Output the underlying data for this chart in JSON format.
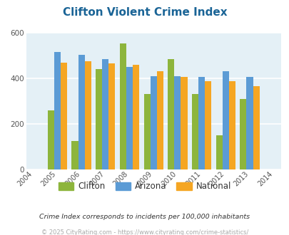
{
  "title": "Clifton Violent Crime Index",
  "years": [
    2004,
    2005,
    2006,
    2007,
    2008,
    2009,
    2010,
    2011,
    2012,
    2013,
    2014
  ],
  "bar_years": [
    2005,
    2006,
    2007,
    2008,
    2009,
    2010,
    2011,
    2012,
    2013
  ],
  "clifton": [
    260,
    125,
    440,
    555,
    330,
    485,
    330,
    148,
    310
  ],
  "arizona": [
    515,
    505,
    485,
    450,
    410,
    410,
    405,
    430,
    405
  ],
  "national": [
    470,
    475,
    465,
    460,
    430,
    405,
    387,
    387,
    365
  ],
  "clifton_color": "#8db53c",
  "arizona_color": "#5b9bd5",
  "national_color": "#f5a623",
  "bg_color": "#e4f0f6",
  "ylim": [
    0,
    600
  ],
  "yticks": [
    0,
    200,
    400,
    600
  ],
  "title_color": "#1a6496",
  "title_fontsize": 11,
  "footnote1": "Crime Index corresponds to incidents per 100,000 inhabitants",
  "footnote2": "© 2025 CityRating.com - https://www.cityrating.com/crime-statistics/",
  "footnote1_color": "#333333",
  "footnote2_color": "#aaaaaa",
  "bar_width": 0.27
}
